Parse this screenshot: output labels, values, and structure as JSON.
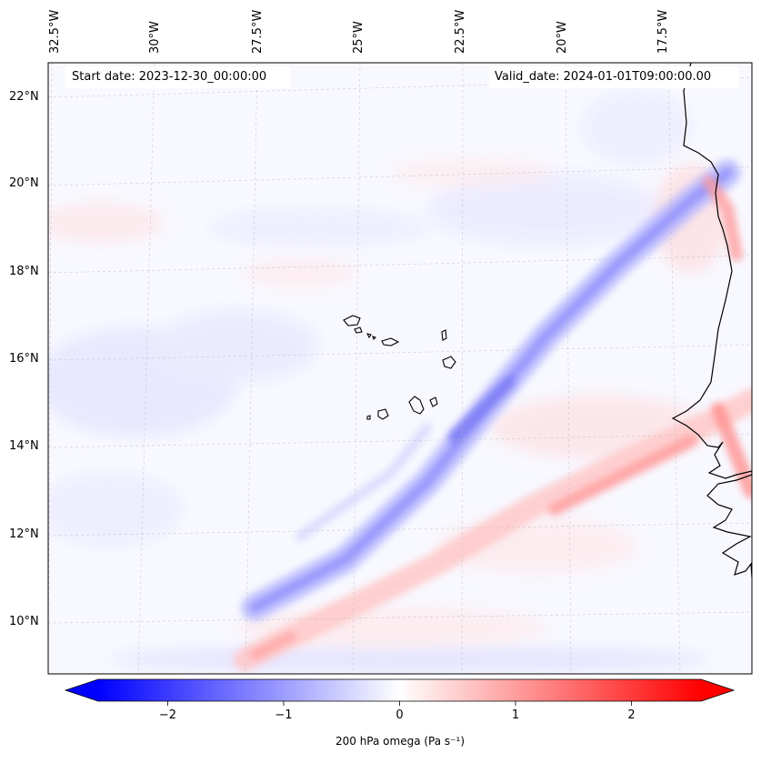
{
  "header": {
    "start_date": "Start date: 2023-12-30_00:00:00",
    "valid_date": "Valid_date: 2024-01-01T09:00:00.00"
  },
  "map": {
    "longitude_labels": [
      "32.5°W",
      "30°W",
      "27.5°W",
      "25°W",
      "22.5°W",
      "20°W",
      "17.5°W"
    ],
    "latitude_labels": [
      "22°N",
      "20°N",
      "18°N",
      "16°N",
      "14°N",
      "12°N",
      "10°N"
    ],
    "field": "200 hPa omega",
    "features": [
      "coastline-africa",
      "cape-verde-islands",
      "gridlines"
    ]
  },
  "colorbar": {
    "label": "200 hPa omega (Pa s⁻¹)",
    "ticks": [
      "−2",
      "−1",
      "0",
      "1",
      "2"
    ],
    "tick_values": [
      -2,
      -1,
      0,
      1,
      2
    ],
    "range": [
      -2.6,
      2.6
    ],
    "colors": {
      "negative": "#0000ff",
      "zero": "#ffffff",
      "positive": "#ff0000"
    }
  }
}
